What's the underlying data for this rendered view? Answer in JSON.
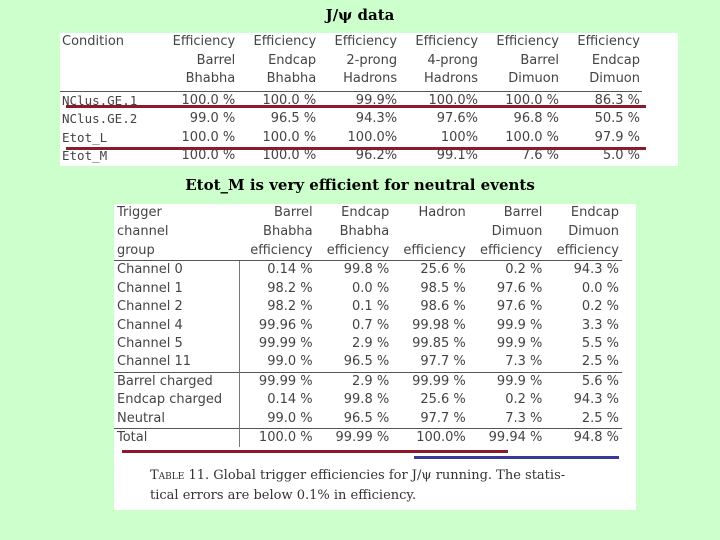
{
  "slide": {
    "title": "J/ψ data",
    "note": "Etot_M is very efficient for neutral events",
    "highlight_colors": {
      "red": "#8b1a2b",
      "blue": "#3a3a9a"
    }
  },
  "table_a": {
    "headers": [
      [
        "Condition",
        "",
        ""
      ],
      [
        "Efficiency",
        "Barrel",
        "Bhabha"
      ],
      [
        "Efficiency",
        "Endcap",
        "Bhabha"
      ],
      [
        "Efficiency",
        "2-prong",
        "Hadrons"
      ],
      [
        "Efficiency",
        "4-prong",
        "Hadrons"
      ],
      [
        "Efficiency",
        "Barrel",
        "Dimuon"
      ],
      [
        "Efficiency",
        "Endcap",
        "Dimuon"
      ]
    ],
    "rows": [
      [
        "NClus.GE.1",
        "100.0 %",
        "100.0 %",
        "99.9%",
        "100.0%",
        "100.0 %",
        "86.3 %"
      ],
      [
        "NClus.GE.2",
        "99.0 %",
        "96.5 %",
        "94.3%",
        "97.6%",
        "96.8 %",
        "50.5 %"
      ],
      [
        "Etot_L",
        "100.0 %",
        "100.0 %",
        "100.0%",
        "100%",
        "100.0 %",
        "97.9 %"
      ],
      [
        "Etot_M",
        "100.0 %",
        "100.0 %",
        "96.2%",
        "99.1%",
        "7.6 %",
        "5.0 %"
      ]
    ]
  },
  "table_b": {
    "headers": [
      [
        "Trigger",
        "channel",
        "group"
      ],
      [
        "Barrel",
        "Bhabha",
        "efficiency"
      ],
      [
        "Endcap",
        "Bhabha",
        "efficiency"
      ],
      [
        "Hadron",
        "",
        "efficiency"
      ],
      [
        "Barrel",
        "Dimuon",
        "efficiency"
      ],
      [
        "Endcap",
        "Dimuon",
        "efficiency"
      ]
    ],
    "rows": [
      [
        "Channel 0",
        "0.14 %",
        "99.8 %",
        "25.6 %",
        "0.2 %",
        "94.3 %"
      ],
      [
        "Channel 1",
        "98.2 %",
        "0.0 %",
        "98.5 %",
        "97.6 %",
        "0.0 %"
      ],
      [
        "Channel 2",
        "98.2 %",
        "0.1 %",
        "98.6 %",
        "97.6 %",
        "0.2 %"
      ],
      [
        "Channel 4",
        "99.96 %",
        "0.7 %",
        "99.98 %",
        "99.9 %",
        "3.3 %"
      ],
      [
        "Channel 5",
        "99.99 %",
        "2.9 %",
        "99.85 %",
        "99.9 %",
        "5.5 %"
      ],
      [
        "Channel 11",
        "99.0 %",
        "96.5 %",
        "97.7 %",
        "7.3 %",
        "2.5 %"
      ],
      [
        "Barrel charged",
        "99.99 %",
        "2.9 %",
        "99.99 %",
        "99.9 %",
        "5.6 %"
      ],
      [
        "Endcap charged",
        "0.14 %",
        "99.8 %",
        "25.6 %",
        "0.2 %",
        "94.3 %"
      ],
      [
        "Neutral",
        "99.0 %",
        "96.5 %",
        "97.7 %",
        "7.3 %",
        "2.5 %"
      ],
      [
        "Total",
        "100.0 %",
        "99.99 %",
        "100.0%",
        "99.94 %",
        "94.8 %"
      ]
    ],
    "caption": {
      "label": "Table 11.",
      "line1": "Global trigger efficiencies for J/ψ running. The statis-",
      "line2": "tical errors are below 0.1% in efficiency."
    }
  }
}
